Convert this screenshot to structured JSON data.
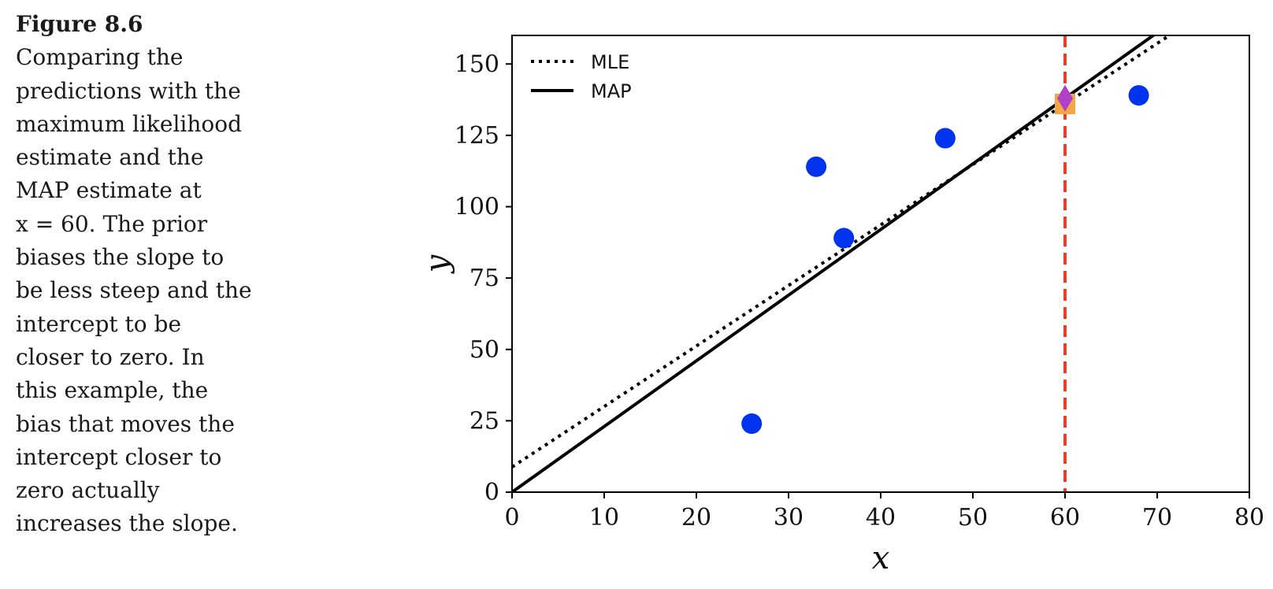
{
  "caption": {
    "figure_label": "Figure 8.6",
    "lines": [
      "Comparing the",
      "predictions with the",
      "maximum likelihood",
      "estimate and the",
      "MAP estimate at",
      "x = 60. The prior",
      "biases the slope to",
      "be less steep and the",
      "intercept to be",
      "closer to zero. In",
      "this example, the",
      "bias that moves the",
      "intercept closer to",
      "zero actually",
      "increases the slope."
    ]
  },
  "chart_data": {
    "type": "scatter",
    "title": "",
    "xlabel": "x",
    "ylabel": "y",
    "xlim": [
      0,
      80
    ],
    "ylim": [
      0,
      160
    ],
    "xticks": [
      0,
      10,
      20,
      30,
      40,
      50,
      60,
      70,
      80
    ],
    "yticks": [
      0,
      25,
      50,
      75,
      100,
      125,
      150
    ],
    "grid": false,
    "legend_position": "top-left",
    "points": {
      "color": "#0033ee",
      "x": [
        26,
        33,
        36,
        47,
        68
      ],
      "y": [
        24,
        114,
        89,
        124,
        139
      ]
    },
    "lines": [
      {
        "name": "MLE",
        "style": "dotted",
        "color": "#000000",
        "intercept": 8.8,
        "slope": 2.12
      },
      {
        "name": "MAP",
        "style": "solid",
        "color": "#000000",
        "intercept": 0,
        "slope": 2.3
      }
    ],
    "vline": {
      "x": 60,
      "color": "#e8412b",
      "style": "dashed"
    },
    "predictions": [
      {
        "marker": "square",
        "color": "#f4a742",
        "x": 60,
        "y": 136
      },
      {
        "marker": "diamond",
        "color": "#b040c8",
        "x": 60,
        "y": 138
      }
    ]
  }
}
